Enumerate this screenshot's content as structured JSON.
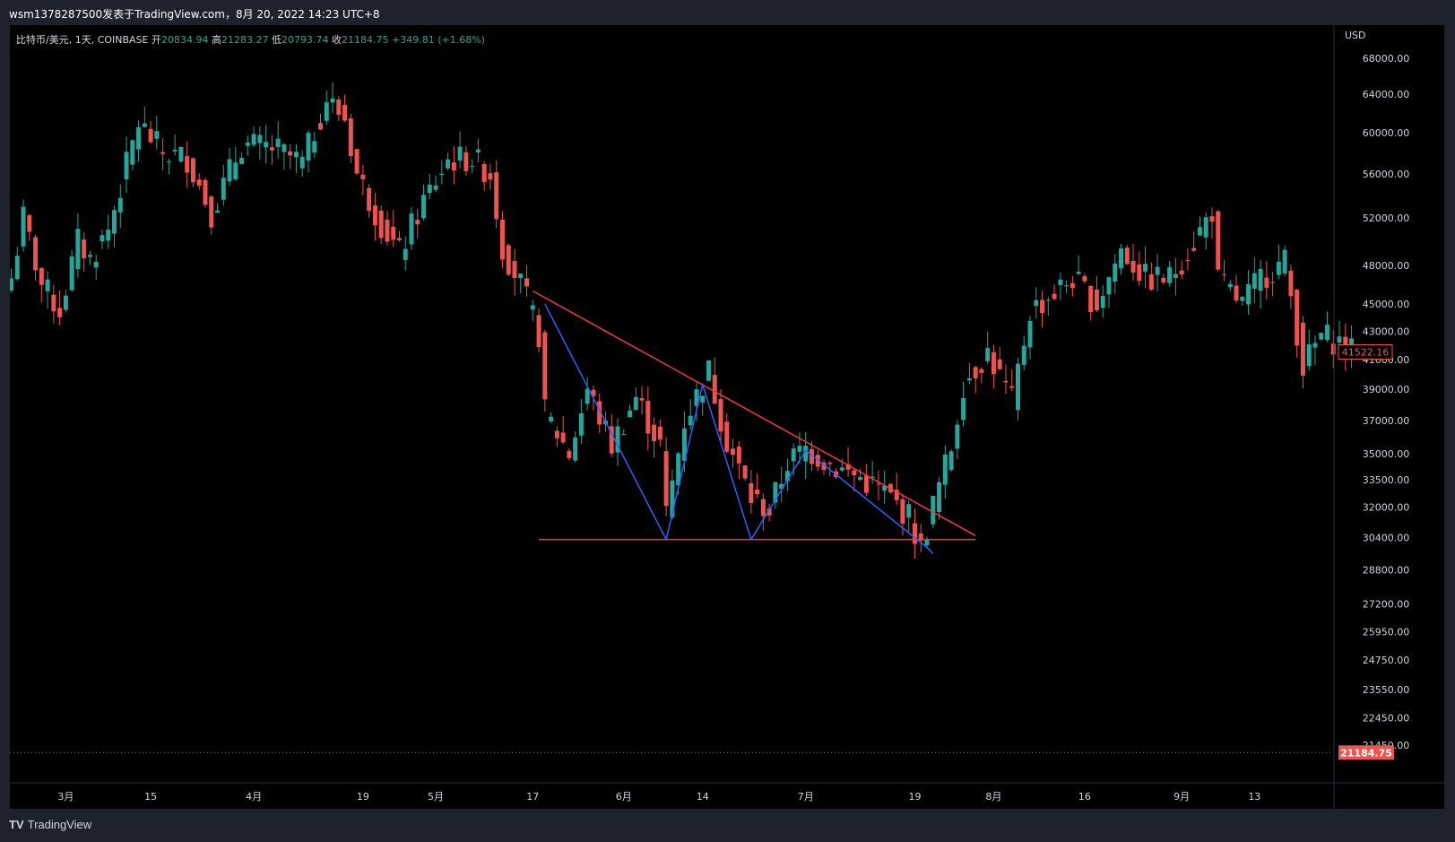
{
  "header": {
    "watermark": "wsm1378287500发表于TradingView.com，8月 20, 2022 14:23 UTC+8"
  },
  "legend": {
    "symbol": "比特币/美元, 1天, COINBASE",
    "open_label": "开",
    "open": "20834.94",
    "high_label": "高",
    "high": "21283.27",
    "low_label": "低",
    "low": "20793.74",
    "close_label": "收",
    "close": "21184.75",
    "change": "+349.81 (+1.68%)"
  },
  "footer": {
    "brand": "TradingView"
  },
  "colors": {
    "up": "#26a69a",
    "down": "#ef5350",
    "pattern_line": "#2962ff",
    "trend_line": "#f23645",
    "background": "#000000",
    "panel": "#1e222d"
  },
  "chart_data": {
    "type": "candlestick",
    "currency": "USD",
    "y_scale": "log",
    "ylim": [
      21000,
      70000
    ],
    "y_ticks": [
      "68000.00",
      "64000.00",
      "60000.00",
      "56000.00",
      "52000.00",
      "48000.00",
      "45000.00",
      "43000.00",
      "41000.00",
      "39000.00",
      "37000.00",
      "35000.00",
      "33500.00",
      "32000.00",
      "30400.00",
      "28800.00",
      "27200.00",
      "25950.00",
      "24750.00",
      "23550.00",
      "22450.00",
      "21450.00"
    ],
    "y_tick_values": [
      68000,
      64000,
      60000,
      56000,
      52000,
      48000,
      45000,
      43000,
      41000,
      39000,
      37000,
      35000,
      33500,
      32000,
      30400,
      28800,
      27200,
      25950,
      24750,
      23550,
      22450,
      21450
    ],
    "x_ticks": [
      {
        "label": "3月",
        "date": "2021-03-01"
      },
      {
        "label": "15",
        "date": "2021-03-15"
      },
      {
        "label": "4月",
        "date": "2021-04-01"
      },
      {
        "label": "19",
        "date": "2021-04-19"
      },
      {
        "label": "5月",
        "date": "2021-05-01"
      },
      {
        "label": "17",
        "date": "2021-05-17"
      },
      {
        "label": "6月",
        "date": "2021-06-01"
      },
      {
        "label": "14",
        "date": "2021-06-14"
      },
      {
        "label": "7月",
        "date": "2021-07-01"
      },
      {
        "label": "19",
        "date": "2021-07-19"
      },
      {
        "label": "8月",
        "date": "2021-08-01"
      },
      {
        "label": "16",
        "date": "2021-08-16"
      },
      {
        "label": "9月",
        "date": "2021-09-01"
      },
      {
        "label": "13",
        "date": "2021-09-13"
      }
    ],
    "price_badges": [
      {
        "label": "41522.16",
        "value": 41522.16,
        "style": "outline"
      },
      {
        "label": "21184.75",
        "value": 21184.75,
        "style": "filled"
      }
    ],
    "current_price_line": 21184.75,
    "close_anchors": [
      {
        "date": "2021-02-20",
        "close": 47000
      },
      {
        "date": "2021-02-22",
        "close": 52000
      },
      {
        "date": "2021-02-25",
        "close": 46500
      },
      {
        "date": "2021-02-28",
        "close": 44500
      },
      {
        "date": "2021-03-03",
        "close": 50000
      },
      {
        "date": "2021-03-05",
        "close": 48500
      },
      {
        "date": "2021-03-08",
        "close": 51000
      },
      {
        "date": "2021-03-13",
        "close": 61000
      },
      {
        "date": "2021-03-17",
        "close": 58000
      },
      {
        "date": "2021-03-21",
        "close": 57500
      },
      {
        "date": "2021-03-25",
        "close": 52500
      },
      {
        "date": "2021-03-30",
        "close": 58800
      },
      {
        "date": "2021-04-04",
        "close": 58500
      },
      {
        "date": "2021-04-09",
        "close": 57000
      },
      {
        "date": "2021-04-13",
        "close": 63500
      },
      {
        "date": "2021-04-16",
        "close": 61500
      },
      {
        "date": "2021-04-18",
        "close": 56000
      },
      {
        "date": "2021-04-22",
        "close": 51500
      },
      {
        "date": "2021-04-25",
        "close": 49000
      },
      {
        "date": "2021-04-29",
        "close": 53500
      },
      {
        "date": "2021-05-03",
        "close": 57300
      },
      {
        "date": "2021-05-07",
        "close": 57500
      },
      {
        "date": "2021-05-10",
        "close": 56000
      },
      {
        "date": "2021-05-12",
        "close": 49500
      },
      {
        "date": "2021-05-15",
        "close": 46500
      },
      {
        "date": "2021-05-18",
        "close": 42800
      },
      {
        "date": "2021-05-19",
        "close": 37500
      },
      {
        "date": "2021-05-23",
        "close": 35000
      },
      {
        "date": "2021-05-26",
        "close": 39000
      },
      {
        "date": "2021-05-30",
        "close": 35500
      },
      {
        "date": "2021-06-03",
        "close": 38500
      },
      {
        "date": "2021-06-07",
        "close": 35500
      },
      {
        "date": "2021-06-08",
        "close": 31600
      },
      {
        "date": "2021-06-11",
        "close": 37000
      },
      {
        "date": "2021-06-15",
        "close": 40200
      },
      {
        "date": "2021-06-18",
        "close": 35800
      },
      {
        "date": "2021-06-22",
        "close": 32500
      },
      {
        "date": "2021-06-25",
        "close": 31800
      },
      {
        "date": "2021-06-28",
        "close": 34500
      },
      {
        "date": "2021-07-01",
        "close": 35300
      },
      {
        "date": "2021-07-06",
        "close": 34200
      },
      {
        "date": "2021-07-10",
        "close": 33600
      },
      {
        "date": "2021-07-14",
        "close": 32800
      },
      {
        "date": "2021-07-18",
        "close": 31500
      },
      {
        "date": "2021-07-20",
        "close": 29800
      },
      {
        "date": "2021-07-22",
        "close": 32100
      },
      {
        "date": "2021-07-25",
        "close": 35400
      },
      {
        "date": "2021-07-27",
        "close": 39400
      },
      {
        "date": "2021-07-31",
        "close": 41500
      },
      {
        "date": "2021-08-04",
        "close": 38200
      },
      {
        "date": "2021-08-07",
        "close": 44500
      },
      {
        "date": "2021-08-10",
        "close": 45500
      },
      {
        "date": "2021-08-14",
        "close": 47000
      },
      {
        "date": "2021-08-18",
        "close": 45000
      },
      {
        "date": "2021-08-22",
        "close": 49300
      },
      {
        "date": "2021-08-26",
        "close": 47000
      },
      {
        "date": "2021-08-30",
        "close": 47000
      },
      {
        "date": "2021-09-03",
        "close": 50000
      },
      {
        "date": "2021-09-06",
        "close": 52700
      },
      {
        "date": "2021-09-07",
        "close": 46800
      },
      {
        "date": "2021-09-11",
        "close": 45000
      },
      {
        "date": "2021-09-14",
        "close": 47100
      },
      {
        "date": "2021-09-18",
        "close": 48300
      },
      {
        "date": "2021-09-20",
        "close": 43000
      },
      {
        "date": "2021-09-21",
        "close": 40500
      },
      {
        "date": "2021-09-24",
        "close": 42700
      },
      {
        "date": "2021-09-27",
        "close": 42200
      },
      {
        "date": "2021-09-29",
        "close": 41522
      }
    ],
    "annotations": [
      {
        "type": "descending-triangle",
        "upper_line": [
          {
            "date": "2021-05-17",
            "price": 46000
          },
          {
            "date": "2021-07-29",
            "price": 30500
          }
        ],
        "lower_line": [
          {
            "date": "2021-05-18",
            "price": 30300
          },
          {
            "date": "2021-07-29",
            "price": 30300
          }
        ]
      },
      {
        "type": "zigzag",
        "points": [
          {
            "date": "2021-05-19",
            "price": 45000
          },
          {
            "date": "2021-06-08",
            "price": 30300
          },
          {
            "date": "2021-06-14",
            "price": 39300
          },
          {
            "date": "2021-06-22",
            "price": 30300
          },
          {
            "date": "2021-07-01",
            "price": 35200
          },
          {
            "date": "2021-07-21",
            "price": 29900
          },
          {
            "date": "2021-07-22",
            "price": 29600
          }
        ]
      }
    ]
  }
}
